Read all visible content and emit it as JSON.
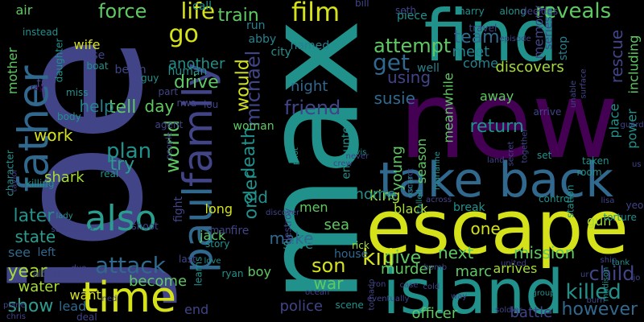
{
  "background": "#000000",
  "palette": {
    "yellow": "#d5e21a",
    "lime": "#a5db36",
    "green": "#5ec962",
    "teal": "#21918c",
    "cyan": "#2a9d8e",
    "blue": "#3b528b",
    "indigo": "#414487",
    "purple": "#440154",
    "navy": "#31688e",
    "slate": "#26828e"
  },
  "words": [
    {
      "text": "joe",
      "color": "indigo",
      "vertical": true
    },
    {
      "text": "max",
      "color": "teal",
      "vertical": true
    },
    {
      "text": "new",
      "color": "purple",
      "vertical": false
    },
    {
      "text": "find",
      "color": "teal",
      "vertical": false
    },
    {
      "text": "escape",
      "color": "yellow",
      "vertical": false
    },
    {
      "text": "island",
      "color": "teal",
      "vertical": false
    },
    {
      "text": "take back",
      "color": "navy",
      "vertical": false
    },
    {
      "text": "father",
      "color": "navy",
      "vertical": true
    },
    {
      "text": "family",
      "color": "indigo",
      "vertical": true
    },
    {
      "text": "paul",
      "color": "navy",
      "vertical": true
    },
    {
      "text": "also",
      "color": "cyan",
      "vertical": false
    },
    {
      "text": "time",
      "color": "yellow",
      "vertical": false
    },
    {
      "text": "film",
      "color": "yellow",
      "vertical": false
    },
    {
      "text": "life",
      "color": "yellow",
      "vertical": false
    },
    {
      "text": "force",
      "color": "green",
      "vertical": false
    },
    {
      "text": "go",
      "color": "yellow",
      "vertical": false
    },
    {
      "text": "get",
      "color": "navy",
      "vertical": false
    },
    {
      "text": "attempt",
      "color": "green",
      "vertical": false
    },
    {
      "text": "reveals",
      "color": "green",
      "vertical": false
    },
    {
      "text": "rescue",
      "color": "indigo",
      "vertical": true
    },
    {
      "text": "including",
      "color": "green",
      "vertical": true
    },
    {
      "text": "team",
      "color": "navy",
      "vertical": false
    },
    {
      "text": "using",
      "color": "indigo",
      "vertical": false
    },
    {
      "text": "susie",
      "color": "navy",
      "vertical": false
    },
    {
      "text": "meet",
      "color": "slate",
      "vertical": false
    },
    {
      "text": "come",
      "color": "slate",
      "vertical": false
    },
    {
      "text": "discovers",
      "color": "lime",
      "vertical": false
    },
    {
      "text": "friend",
      "color": "indigo",
      "vertical": false
    },
    {
      "text": "michael",
      "color": "indigo",
      "vertical": true
    },
    {
      "text": "would",
      "color": "yellow",
      "vertical": true
    },
    {
      "text": "drive",
      "color": "green",
      "vertical": false
    },
    {
      "text": "another",
      "color": "teal",
      "vertical": false
    },
    {
      "text": "train",
      "color": "green",
      "vertical": false
    },
    {
      "text": "night",
      "color": "navy",
      "vertical": false
    },
    {
      "text": "plan",
      "color": "teal",
      "vertical": false
    },
    {
      "text": "try",
      "color": "cyan",
      "vertical": false
    },
    {
      "text": "tell",
      "color": "green",
      "vertical": false
    },
    {
      "text": "day",
      "color": "green",
      "vertical": false
    },
    {
      "text": "help",
      "color": "slate",
      "vertical": false
    },
    {
      "text": "work",
      "color": "yellow",
      "vertical": false
    },
    {
      "text": "world",
      "color": "green",
      "vertical": true
    },
    {
      "text": "order",
      "color": "teal",
      "vertical": true
    },
    {
      "text": "death",
      "color": "teal",
      "vertical": true
    },
    {
      "text": "return",
      "color": "teal",
      "vertical": false
    },
    {
      "text": "young",
      "color": "green",
      "vertical": true
    },
    {
      "text": "meanwhile",
      "color": "green",
      "vertical": true
    },
    {
      "text": "season",
      "color": "green",
      "vertical": true
    },
    {
      "text": "king",
      "color": "lime",
      "vertical": false
    },
    {
      "text": "home",
      "color": "teal",
      "vertical": false
    },
    {
      "text": "old",
      "color": "teal",
      "vertical": false
    },
    {
      "text": "later",
      "color": "teal",
      "vertical": false
    },
    {
      "text": "shark",
      "color": "lime",
      "vertical": false
    },
    {
      "text": "year",
      "color": "lime",
      "vertical": false
    },
    {
      "text": "attack",
      "color": "navy",
      "vertical": false
    },
    {
      "text": "state",
      "color": "cyan",
      "vertical": false
    },
    {
      "text": "show",
      "color": "cyan",
      "vertical": false
    },
    {
      "text": "make",
      "color": "navy",
      "vertical": false
    },
    {
      "text": "son",
      "color": "yellow",
      "vertical": false
    },
    {
      "text": "give",
      "color": "green",
      "vertical": false
    },
    {
      "text": "kill",
      "color": "yellow",
      "vertical": false
    },
    {
      "text": "next",
      "color": "green",
      "vertical": false
    },
    {
      "text": "mission",
      "color": "green",
      "vertical": false
    },
    {
      "text": "child",
      "color": "indigo",
      "vertical": false
    },
    {
      "text": "killed",
      "color": "teal",
      "vertical": false
    },
    {
      "text": "however",
      "color": "navy",
      "vertical": false
    },
    {
      "text": "one",
      "color": "yellow",
      "vertical": false
    },
    {
      "text": "police",
      "color": "indigo",
      "vertical": false
    },
    {
      "text": "war",
      "color": "green",
      "vertical": false
    },
    {
      "text": "sea",
      "color": "green",
      "vertical": false
    },
    {
      "text": "become",
      "color": "green",
      "vertical": false
    },
    {
      "text": "mother",
      "color": "green",
      "vertical": true
    },
    {
      "text": "air",
      "color": "green",
      "vertical": false
    },
    {
      "text": "wife",
      "color": "yellow",
      "vertical": false
    },
    {
      "text": "place",
      "color": "teal",
      "vertical": true
    },
    {
      "text": "power",
      "color": "teal",
      "vertical": true
    },
    {
      "text": "away",
      "color": "green",
      "vertical": false
    },
    {
      "text": "arrives",
      "color": "lime",
      "vertical": false
    },
    {
      "text": "marc",
      "color": "green",
      "vertical": false
    },
    {
      "text": "murder",
      "color": "green",
      "vertical": false
    },
    {
      "text": "officer",
      "color": "green",
      "vertical": false
    },
    {
      "text": "battle",
      "color": "indigo",
      "vertical": false
    },
    {
      "text": "encounter",
      "color": "teal",
      "vertical": true
    },
    {
      "text": "men",
      "color": "green",
      "vertical": false
    },
    {
      "text": "black",
      "color": "lime",
      "vertical": false
    },
    {
      "text": "break",
      "color": "teal",
      "vertical": false
    },
    {
      "text": "lead",
      "color": "navy",
      "vertical": false
    },
    {
      "text": "want",
      "color": "yellow",
      "vertical": false
    },
    {
      "text": "end",
      "color": "indigo",
      "vertical": false
    },
    {
      "text": "long",
      "color": "yellow",
      "vertical": false
    },
    {
      "text": "jack",
      "color": "green",
      "vertical": false
    },
    {
      "text": "boy",
      "color": "green",
      "vertical": false
    },
    {
      "text": "water",
      "color": "lime",
      "vertical": false
    },
    {
      "text": "see",
      "color": "navy",
      "vertical": false
    },
    {
      "text": "left",
      "color": "navy",
      "vertical": false
    },
    {
      "text": "memory",
      "color": "indigo",
      "vertical": true
    },
    {
      "text": "series",
      "color": "indigo",
      "vertical": true
    },
    {
      "text": "stop",
      "color": "slate",
      "vertical": true
    },
    {
      "text": "gun",
      "color": "lime",
      "vertical": false
    },
    {
      "text": "well",
      "color": "slate",
      "vertical": false
    },
    {
      "text": "fall",
      "color": "indigo",
      "vertical": false
    },
    {
      "text": "use",
      "color": "indigo",
      "vertical": false
    },
    {
      "text": "begin",
      "color": "indigo",
      "vertical": false
    },
    {
      "text": "human",
      "color": "teal",
      "vertical": false
    },
    {
      "text": "city",
      "color": "teal",
      "vertical": false
    },
    {
      "text": "run",
      "color": "slate",
      "vertical": false
    },
    {
      "text": "abby",
      "color": "slate",
      "vertical": false
    },
    {
      "text": "named",
      "color": "slate",
      "vertical": false
    },
    {
      "text": "call",
      "color": "teal",
      "vertical": false
    },
    {
      "text": "harry",
      "color": "teal",
      "vertical": false
    },
    {
      "text": "along",
      "color": "teal",
      "vertical": false
    },
    {
      "text": "decides",
      "color": "indigo",
      "vertical": false
    },
    {
      "text": "piece",
      "color": "teal",
      "vertical": false
    },
    {
      "text": "bill",
      "color": "indigo",
      "vertical": false
    },
    {
      "text": "seth",
      "color": "indigo",
      "vertical": false
    },
    {
      "text": "travel",
      "color": "indigo",
      "vertical": false
    },
    {
      "text": "instead",
      "color": "teal",
      "vertical": false
    },
    {
      "text": "daughter",
      "color": "teal",
      "vertical": true
    },
    {
      "text": "boat",
      "color": "teal",
      "vertical": false
    },
    {
      "text": "guy",
      "color": "teal",
      "vertical": false
    },
    {
      "text": "part",
      "color": "indigo",
      "vertical": false
    },
    {
      "text": "nwa",
      "color": "indigo",
      "vertical": false
    },
    {
      "text": "lou",
      "color": "indigo",
      "vertical": false
    },
    {
      "text": "miss",
      "color": "teal",
      "vertical": false
    },
    {
      "text": "body",
      "color": "teal",
      "vertical": false
    },
    {
      "text": "agent",
      "color": "indigo",
      "vertical": false
    },
    {
      "text": "woman",
      "color": "green",
      "vertical": false
    },
    {
      "text": "character",
      "color": "teal",
      "vertical": true
    },
    {
      "text": "taylor",
      "color": "indigo",
      "vertical": true
    },
    {
      "text": "people",
      "color": "indigo",
      "vertical": true
    },
    {
      "text": "real",
      "color": "teal",
      "vertical": false
    },
    {
      "text": "fight",
      "color": "indigo",
      "vertical": true
    },
    {
      "text": "pilot",
      "color": "teal",
      "vertical": true
    },
    {
      "text": "ray",
      "color": "purple",
      "vertical": false
    },
    {
      "text": "killing",
      "color": "teal",
      "vertical": false
    },
    {
      "text": "lady",
      "color": "teal",
      "vertical": false
    },
    {
      "text": "shoot",
      "color": "indigo",
      "vertical": false
    },
    {
      "text": "fire",
      "color": "indigo",
      "vertical": false
    },
    {
      "text": "destroy",
      "color": "indigo",
      "vertical": true
    },
    {
      "text": "discover",
      "color": "indigo",
      "vertical": false
    },
    {
      "text": "save",
      "color": "teal",
      "vertical": false
    },
    {
      "text": "story",
      "color": "teal",
      "vertical": false
    },
    {
      "text": "man",
      "color": "indigo",
      "vertical": false
    },
    {
      "text": "love",
      "color": "teal",
      "vertical": false
    },
    {
      "text": "last",
      "color": "indigo",
      "vertical": false
    },
    {
      "text": "learns",
      "color": "teal",
      "vertical": true
    },
    {
      "text": "ryan",
      "color": "teal",
      "vertical": false
    },
    {
      "text": "house",
      "color": "navy",
      "vertical": false
    },
    {
      "text": "davis",
      "color": "teal",
      "vertical": false
    },
    {
      "text": "crew",
      "color": "indigo",
      "vertical": false
    },
    {
      "text": "never",
      "color": "indigo",
      "vertical": false
    },
    {
      "text": "contact",
      "color": "indigo",
      "vertical": true
    },
    {
      "text": "oscar",
      "color": "teal",
      "vertical": true
    },
    {
      "text": "marianne",
      "color": "teal",
      "vertical": true
    },
    {
      "text": "called",
      "color": "teal",
      "vertical": true
    },
    {
      "text": "ocean",
      "color": "indigo",
      "vertical": false
    },
    {
      "text": "tornado",
      "color": "indigo",
      "vertical": true
    },
    {
      "text": "scene",
      "color": "teal",
      "vertical": false
    },
    {
      "text": "rick",
      "color": "lime",
      "vertical": false
    },
    {
      "text": "ron",
      "color": "indigo",
      "vertical": false
    },
    {
      "text": "eventually",
      "color": "indigo",
      "vertical": false
    },
    {
      "text": "bomb",
      "color": "indigo",
      "vertical": false
    },
    {
      "text": "across",
      "color": "indigo",
      "vertical": false
    },
    {
      "text": "case",
      "color": "indigo",
      "vertical": false
    },
    {
      "text": "cold",
      "color": "indigo",
      "vertical": false
    },
    {
      "text": "way",
      "color": "indigo",
      "vertical": false
    },
    {
      "text": "soldier",
      "color": "indigo",
      "vertical": false
    },
    {
      "text": "united",
      "color": "indigo",
      "vertical": false
    },
    {
      "text": "station",
      "color": "teal",
      "vertical": true
    },
    {
      "text": "set",
      "color": "teal",
      "vertical": false
    },
    {
      "text": "room",
      "color": "teal",
      "vertical": false
    },
    {
      "text": "taken",
      "color": "teal",
      "vertical": false
    },
    {
      "text": "control",
      "color": "teal",
      "vertical": false
    },
    {
      "text": "torture",
      "color": "teal",
      "vertical": false
    },
    {
      "text": "yeon",
      "color": "indigo",
      "vertical": false
    },
    {
      "text": "arrive",
      "color": "indigo",
      "vertical": false
    },
    {
      "text": "land",
      "color": "indigo",
      "vertical": false
    },
    {
      "text": "secret",
      "color": "indigo",
      "vertical": true
    },
    {
      "text": "together",
      "color": "indigo",
      "vertical": true
    },
    {
      "text": "unable",
      "color": "indigo",
      "vertical": true
    },
    {
      "text": "surface",
      "color": "indigo",
      "vertical": true
    },
    {
      "text": "lisa",
      "color": "indigo",
      "vertical": false
    },
    {
      "text": "us",
      "color": "indigo",
      "vertical": false
    },
    {
      "text": "guard",
      "color": "indigo",
      "vertical": false
    },
    {
      "text": "ship",
      "color": "indigo",
      "vertical": false
    },
    {
      "text": "jo",
      "color": "indigo",
      "vertical": false
    },
    {
      "text": "ur",
      "color": "indigo",
      "vertical": false
    },
    {
      "text": "burn",
      "color": "indigo",
      "vertical": false
    },
    {
      "text": "group",
      "color": "teal",
      "vertical": false
    },
    {
      "text": "tank",
      "color": "teal",
      "vertical": false
    },
    {
      "text": "madison",
      "color": "teal",
      "vertical": true
    },
    {
      "text": "episode",
      "color": "indigo",
      "vertical": false
    },
    {
      "text": "albert",
      "color": "indigo",
      "vertical": false
    },
    {
      "text": "due",
      "color": "indigo",
      "vertical": false
    },
    {
      "text": "submarine",
      "color": "indigo",
      "vertical": false
    },
    {
      "text": "chris",
      "color": "indigo",
      "vertical": false
    },
    {
      "text": "plane",
      "color": "indigo",
      "vertical": false
    },
    {
      "text": "ned",
      "color": "indigo",
      "vertical": false
    },
    {
      "text": "deal",
      "color": "indigo",
      "vertical": false
    }
  ]
}
